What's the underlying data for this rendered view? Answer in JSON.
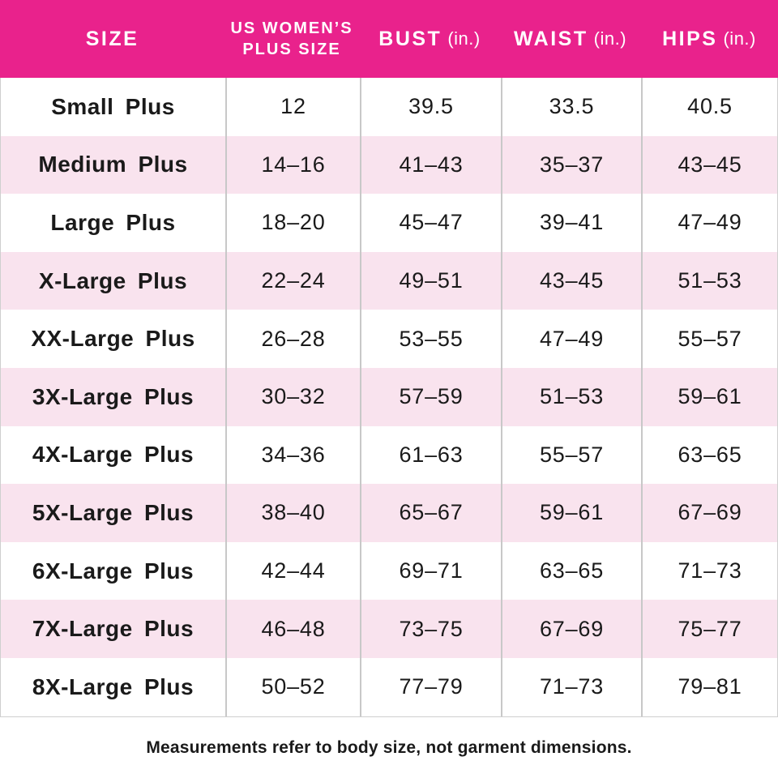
{
  "colors": {
    "header-bg": "#E9228C",
    "header-text": "#FFFFFF",
    "stripe-pink": "#F9E3EE",
    "separator": "#C8C8C8",
    "outer-border": "#CFCFCF",
    "text": "#1A1A1A",
    "page-bg": "#FFFFFF"
  },
  "table": {
    "header": {
      "size": "SIZE",
      "us_line1": "US WOMEN’S",
      "us_line2": "PLUS SIZE",
      "bust": "BUST",
      "waist": "WAIST",
      "hips": "HIPS",
      "unit": "(in.)"
    },
    "rows": [
      {
        "size": "Small Plus",
        "us": "12",
        "bust": "39.5",
        "waist": "33.5",
        "hips": "40.5"
      },
      {
        "size": "Medium Plus",
        "us": "14–16",
        "bust": "41–43",
        "waist": "35–37",
        "hips": "43–45"
      },
      {
        "size": "Large Plus",
        "us": "18–20",
        "bust": "45–47",
        "waist": "39–41",
        "hips": "47–49"
      },
      {
        "size": "X-Large Plus",
        "us": "22–24",
        "bust": "49–51",
        "waist": "43–45",
        "hips": "51–53"
      },
      {
        "size": "XX-Large Plus",
        "us": "26–28",
        "bust": "53–55",
        "waist": "47–49",
        "hips": "55–57"
      },
      {
        "size": "3X-Large Plus",
        "us": "30–32",
        "bust": "57–59",
        "waist": "51–53",
        "hips": "59–61"
      },
      {
        "size": "4X-Large Plus",
        "us": "34–36",
        "bust": "61–63",
        "waist": "55–57",
        "hips": "63–65"
      },
      {
        "size": "5X-Large Plus",
        "us": "38–40",
        "bust": "65–67",
        "waist": "59–61",
        "hips": "67–69"
      },
      {
        "size": "6X-Large Plus",
        "us": "42–44",
        "bust": "69–71",
        "waist": "63–65",
        "hips": "71–73"
      },
      {
        "size": "7X-Large Plus",
        "us": "46–48",
        "bust": "73–75",
        "waist": "67–69",
        "hips": "75–77"
      },
      {
        "size": "8X-Large Plus",
        "us": "50–52",
        "bust": "77–79",
        "waist": "71–73",
        "hips": "79–81"
      }
    ]
  },
  "footer": {
    "note": "Measurements refer to body size, not garment dimensions."
  },
  "chart_data": {
    "type": "table",
    "columns": [
      "SIZE",
      "US WOMEN’S PLUS SIZE",
      "BUST (in.)",
      "WAIST (in.)",
      "HIPS (in.)"
    ],
    "rows": [
      [
        "Small Plus",
        "12",
        "39.5",
        "33.5",
        "40.5"
      ],
      [
        "Medium Plus",
        "14–16",
        "41–43",
        "35–37",
        "43–45"
      ],
      [
        "Large Plus",
        "18–20",
        "45–47",
        "39–41",
        "47–49"
      ],
      [
        "X-Large Plus",
        "22–24",
        "49–51",
        "43–45",
        "51–53"
      ],
      [
        "XX-Large Plus",
        "26–28",
        "53–55",
        "47–49",
        "55–57"
      ],
      [
        "3X-Large Plus",
        "30–32",
        "57–59",
        "51–53",
        "59–61"
      ],
      [
        "4X-Large Plus",
        "34–36",
        "61–63",
        "55–57",
        "63–65"
      ],
      [
        "5X-Large Plus",
        "38–40",
        "65–67",
        "59–61",
        "67–69"
      ],
      [
        "6X-Large Plus",
        "42–44",
        "69–71",
        "63–65",
        "71–73"
      ],
      [
        "7X-Large Plus",
        "46–48",
        "73–75",
        "67–69",
        "75–77"
      ],
      [
        "8X-Large Plus",
        "50–52",
        "77–79",
        "71–73",
        "79–81"
      ]
    ],
    "note": "Measurements refer to body size, not garment dimensions.",
    "layout": {
      "striped_rows": true,
      "stripe_color": "#F9E3EE",
      "header_color": "#E9228C"
    }
  }
}
